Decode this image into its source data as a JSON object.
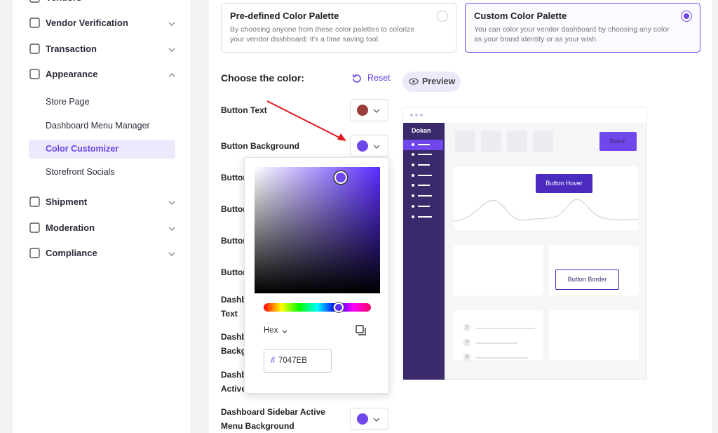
{
  "sidebar": {
    "menu": [
      "Vendors",
      "Vendor Verification",
      "Transaction",
      "Appearance"
    ],
    "submenu": [
      "Store Page",
      "Dashboard Menu Manager",
      "Color Customizer",
      "Storefront Socials"
    ],
    "menu_after": [
      "Shipment",
      "Moderation",
      "Compliance"
    ]
  },
  "palettes": [
    {
      "title": "Pre-defined Color Palette",
      "description": "By choosing anyone from these color palettes to colorize your vendor dashboard; it's a time saving tool.",
      "selected": false
    },
    {
      "title": "Custom Color Palette",
      "description": "You can color your vendor dashboard by choosing any color as your brand identity or as your wish.",
      "selected": true
    }
  ],
  "color_panel": {
    "heading": "Choose the color:",
    "reset": "Reset",
    "rows": [
      {
        "label": [
          "Button Text"
        ],
        "color": "#9B3D3D"
      },
      {
        "label": [
          "Button Background"
        ],
        "color": "#7047EB"
      },
      {
        "label": [
          "Button"
        ]
      },
      {
        "label": [
          "Button"
        ]
      },
      {
        "label": [
          "Button"
        ]
      },
      {
        "label": [
          "Button"
        ]
      },
      {
        "label": [
          "Dashb",
          "Text"
        ]
      },
      {
        "label": [
          "Dashb",
          "Backg"
        ]
      },
      {
        "label": [
          "Dashb",
          "Active"
        ]
      },
      {
        "label": [
          "Dashboard Sidebar Active",
          "Menu Background"
        ],
        "color": "#7047EB"
      }
    ]
  },
  "picker": {
    "format": "Hex",
    "hash": "#",
    "value": "7047EB"
  },
  "preview": {
    "button": "Preview",
    "brand": "Dokan",
    "button_label": "Button",
    "hover": "Button Hover",
    "border": "Button Border",
    "steps": [
      "1",
      "2",
      "3"
    ]
  }
}
